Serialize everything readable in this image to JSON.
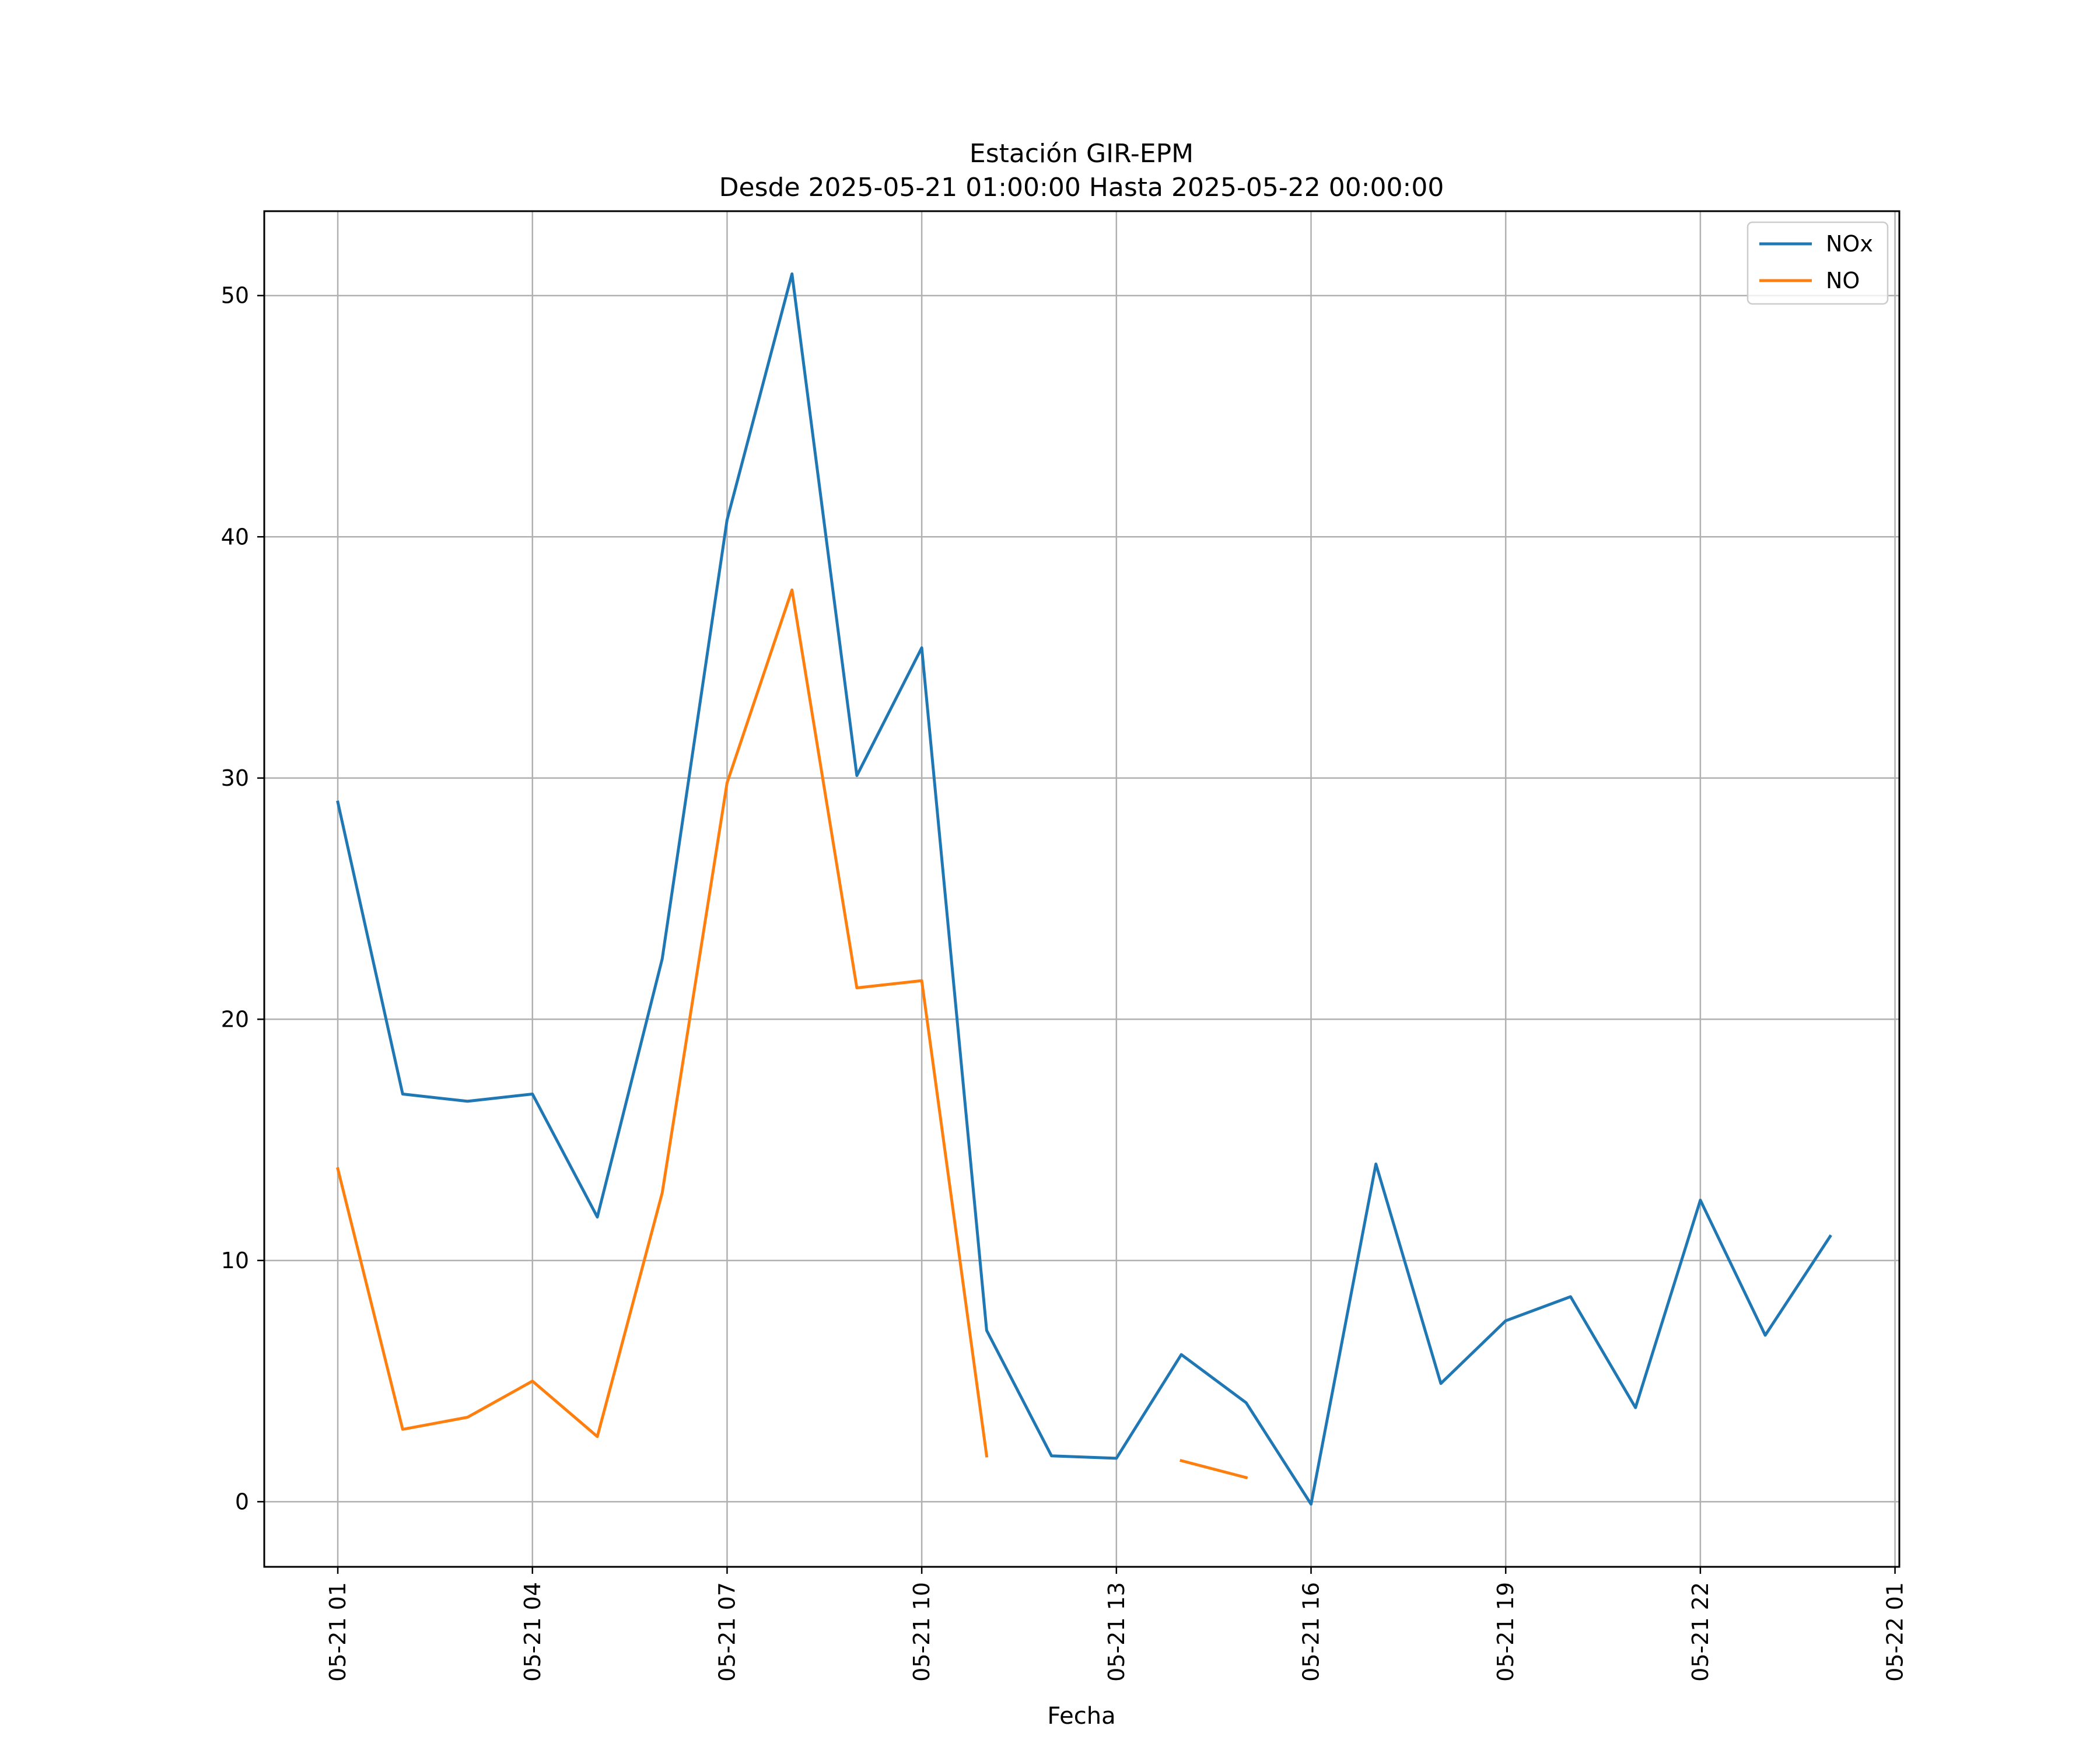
{
  "chart_data": {
    "type": "line",
    "title": "Estación GIR-EPM",
    "subtitle": "Desde 2025-05-21 01:00:00 Hasta 2025-05-22 00:00:00",
    "xlabel": "Fecha",
    "ylabel": "",
    "x": [
      "2025-05-21 01:00",
      "2025-05-21 02:00",
      "2025-05-21 03:00",
      "2025-05-21 04:00",
      "2025-05-21 05:00",
      "2025-05-21 06:00",
      "2025-05-21 07:00",
      "2025-05-21 08:00",
      "2025-05-21 09:00",
      "2025-05-21 10:00",
      "2025-05-21 11:00",
      "2025-05-21 12:00",
      "2025-05-21 13:00",
      "2025-05-21 14:00",
      "2025-05-21 15:00",
      "2025-05-21 16:00",
      "2025-05-21 17:00",
      "2025-05-21 18:00",
      "2025-05-21 19:00",
      "2025-05-21 20:00",
      "2025-05-21 21:00",
      "2025-05-21 22:00",
      "2025-05-21 23:00",
      "2025-05-22 00:00"
    ],
    "xlim": [
      "2025-05-20 23:52",
      "2025-05-22 01:04"
    ],
    "ylim": [
      -2.7,
      53.5
    ],
    "x_tick_labels": [
      "05-21 01",
      "05-21 04",
      "05-21 07",
      "05-21 10",
      "05-21 13",
      "05-21 16",
      "05-21 19",
      "05-21 22",
      "05-22 01"
    ],
    "x_ticks": [
      "2025-05-21 01:00",
      "2025-05-21 04:00",
      "2025-05-21 07:00",
      "2025-05-21 10:00",
      "2025-05-21 13:00",
      "2025-05-21 16:00",
      "2025-05-21 19:00",
      "2025-05-21 22:00",
      "2025-05-22 01:00"
    ],
    "y_ticks": [
      0,
      10,
      20,
      30,
      40,
      50
    ],
    "grid": true,
    "legend_position": "top-right",
    "series": [
      {
        "name": "NOx",
        "color": "#1f77b4",
        "values": [
          29.0,
          16.9,
          16.6,
          16.9,
          11.8,
          22.5,
          40.7,
          50.9,
          30.1,
          35.4,
          7.1,
          1.9,
          1.8,
          6.1,
          4.1,
          -0.1,
          14.0,
          4.9,
          7.5,
          8.5,
          3.9,
          12.5,
          6.9,
          11.0
        ]
      },
      {
        "name": "NO",
        "color": "#ff7f0e",
        "values": [
          13.8,
          3.0,
          3.5,
          5.0,
          2.7,
          12.8,
          29.8,
          37.8,
          21.3,
          21.6,
          1.9,
          null,
          null,
          1.7,
          1.0,
          null,
          null,
          null,
          null,
          null,
          null,
          null,
          null,
          null
        ]
      }
    ]
  }
}
